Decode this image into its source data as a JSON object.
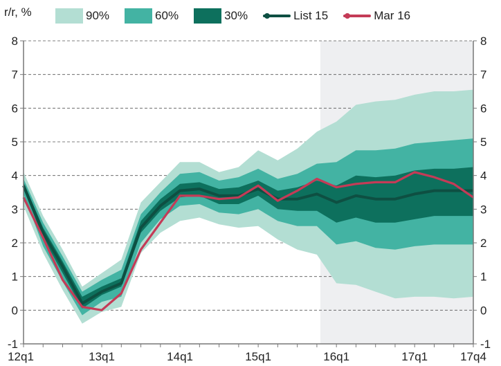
{
  "chart_data": {
    "type": "area",
    "unit_label": "r/r, %",
    "categories": [
      "12q1",
      "12q2",
      "12q3",
      "12q4",
      "13q1",
      "13q2",
      "13q3",
      "13q4",
      "14q1",
      "14q2",
      "14q3",
      "14q4",
      "15q1",
      "15q2",
      "15q3",
      "15q4",
      "16q1",
      "16q2",
      "16q3",
      "16q4",
      "17q1",
      "17q2",
      "17q3",
      "17q4"
    ],
    "x_tick_labels": [
      "12q1",
      "13q1",
      "14q1",
      "15q1",
      "16q1",
      "17q1",
      "17q4"
    ],
    "y_ticks": [
      -1,
      0,
      1,
      2,
      3,
      4,
      5,
      6,
      7,
      8
    ],
    "ylim": [
      -1,
      8
    ],
    "forecast_shading_from": "15q4",
    "legend_position": "top",
    "fan_bands": [
      {
        "name": "90%",
        "color": "#b3ded3",
        "upper": [
          4.1,
          2.8,
          1.8,
          0.7,
          1.1,
          1.5,
          3.2,
          3.8,
          4.4,
          4.4,
          4.1,
          4.25,
          4.75,
          4.45,
          4.8,
          5.3,
          5.6,
          6.1,
          6.2,
          6.25,
          6.4,
          6.5,
          6.5,
          6.55
        ],
        "lower": [
          3.1,
          1.7,
          0.6,
          -0.4,
          -0.05,
          0.1,
          1.7,
          2.3,
          2.65,
          2.75,
          2.55,
          2.45,
          2.5,
          2.1,
          1.8,
          1.65,
          0.8,
          0.75,
          0.55,
          0.35,
          0.4,
          0.4,
          0.35,
          0.4
        ]
      },
      {
        "name": "60%",
        "color": "#43b3a3",
        "upper": [
          3.9,
          2.6,
          1.6,
          0.55,
          0.9,
          1.2,
          2.85,
          3.5,
          4.05,
          4.1,
          3.85,
          3.95,
          4.2,
          3.9,
          4.05,
          4.35,
          4.4,
          4.75,
          4.75,
          4.8,
          4.95,
          5.0,
          5.05,
          5.1
        ],
        "lower": [
          3.45,
          1.9,
          0.85,
          -0.15,
          0.25,
          0.4,
          2.0,
          2.7,
          3.1,
          3.15,
          2.9,
          2.85,
          3.0,
          2.65,
          2.5,
          2.5,
          1.95,
          2.05,
          1.85,
          1.8,
          1.9,
          1.95,
          1.95,
          1.95
        ]
      },
      {
        "name": "30%",
        "color": "#0d705d",
        "upper": [
          3.8,
          2.45,
          1.45,
          0.4,
          0.7,
          0.95,
          2.65,
          3.3,
          3.75,
          3.8,
          3.6,
          3.65,
          3.85,
          3.55,
          3.65,
          3.85,
          3.7,
          4.0,
          3.95,
          4.0,
          4.15,
          4.2,
          4.2,
          4.25
        ],
        "lower": [
          3.6,
          2.15,
          1.1,
          0.05,
          0.45,
          0.7,
          2.3,
          2.95,
          3.35,
          3.4,
          3.15,
          3.15,
          3.4,
          3.0,
          2.95,
          2.95,
          2.6,
          2.75,
          2.6,
          2.6,
          2.7,
          2.8,
          2.8,
          2.8
        ]
      }
    ],
    "series": [
      {
        "name": "List 15",
        "color": "#0e4f42",
        "values": [
          3.7,
          2.3,
          1.3,
          0.2,
          0.55,
          0.8,
          2.45,
          3.1,
          3.55,
          3.6,
          3.4,
          3.4,
          3.6,
          3.3,
          3.3,
          3.45,
          3.2,
          3.4,
          3.3,
          3.3,
          3.45,
          3.55,
          3.55,
          3.55
        ]
      },
      {
        "name": "Mar 16",
        "color": "#c43b57",
        "values": [
          3.35,
          2.15,
          0.9,
          0.1,
          0.0,
          0.5,
          1.8,
          2.6,
          3.4,
          3.4,
          3.3,
          3.35,
          3.7,
          3.25,
          3.55,
          3.9,
          3.65,
          3.75,
          3.8,
          3.8,
          4.1,
          3.95,
          3.75,
          3.35
        ]
      }
    ],
    "colors": {
      "forecast_shade": "#eeeff1",
      "grid": "#555555",
      "axis": "#777777"
    }
  }
}
